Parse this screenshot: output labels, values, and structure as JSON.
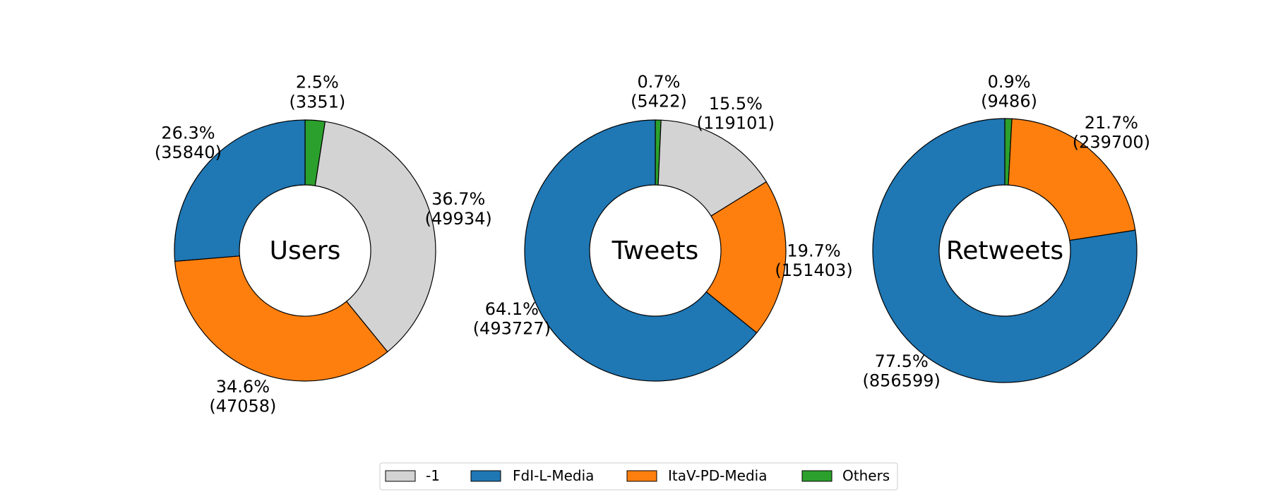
{
  "legend": {
    "placement": "bottom-center",
    "entries": [
      {
        "label": "-1",
        "color": "#d3d3d3"
      },
      {
        "label": "FdI-L-Media",
        "color": "#1f77b4"
      },
      {
        "label": "ItaV-PD-Media",
        "color": "#ff7f0e"
      },
      {
        "label": "Others",
        "color": "#2ca02c"
      }
    ]
  },
  "chart_data": [
    {
      "type": "pie",
      "center_label": "Users",
      "categories": [
        "Others",
        "-1",
        "ItaV-PD-Media",
        "FdI-L-Media"
      ],
      "values": [
        3351,
        49934,
        47058,
        35840
      ],
      "percent_labels": [
        "2.5%",
        "36.7%",
        "34.6%",
        "26.3%"
      ],
      "count_labels": [
        "(3351)",
        "(49934)",
        "(47058)",
        "(35840)"
      ],
      "colors": [
        "#2ca02c",
        "#d3d3d3",
        "#ff7f0e",
        "#1f77b4"
      ]
    },
    {
      "type": "pie",
      "center_label": "Tweets",
      "categories": [
        "Others",
        "-1",
        "ItaV-PD-Media",
        "FdI-L-Media"
      ],
      "values": [
        5422,
        119101,
        151403,
        493727
      ],
      "percent_labels": [
        "0.7%",
        "15.5%",
        "19.7%",
        "64.1%"
      ],
      "count_labels": [
        "(5422)",
        "(119101)",
        "(151403)",
        "(493727)"
      ],
      "colors": [
        "#2ca02c",
        "#d3d3d3",
        "#ff7f0e",
        "#1f77b4"
      ]
    },
    {
      "type": "pie",
      "center_label": "Retweets",
      "categories": [
        "Others",
        "ItaV-PD-Media",
        "FdI-L-Media"
      ],
      "values": [
        9486,
        239700,
        856599
      ],
      "percent_labels": [
        "0.9%",
        "21.7%",
        "77.5%"
      ],
      "count_labels": [
        "(9486)",
        "(239700)",
        "(856599)"
      ],
      "colors": [
        "#2ca02c",
        "#ff7f0e",
        "#1f77b4"
      ]
    }
  ]
}
